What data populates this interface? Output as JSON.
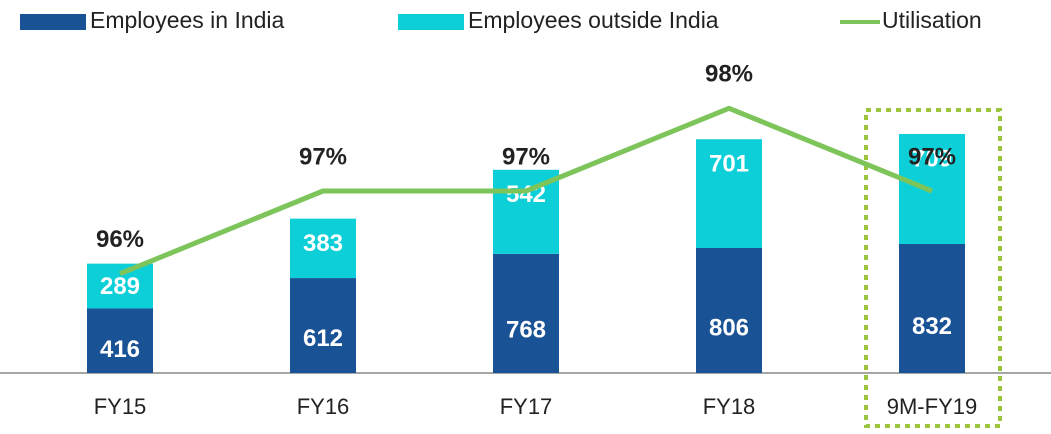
{
  "chart_data": {
    "type": "bar",
    "stacked": true,
    "categories": [
      "FY15",
      "FY16",
      "FY17",
      "FY18",
      "9M-FY19"
    ],
    "series": [
      {
        "name": "Employees in India",
        "color": "#1a5296",
        "values": [
          416,
          612,
          768,
          806,
          832
        ]
      },
      {
        "name": "Employees outside India",
        "color": "#0ccfd8",
        "values": [
          289,
          383,
          542,
          701,
          709
        ]
      },
      {
        "name": "Utilisation",
        "color": "#7dc55a",
        "type": "line",
        "axis": "y2",
        "values": [
          96,
          97,
          97,
          98,
          97
        ],
        "value_labels": [
          "96%",
          "97%",
          "97%",
          "98%",
          "97%"
        ]
      }
    ],
    "ylim": [
      0,
      1760
    ],
    "y2lim": [
      94.8,
      98.1
    ],
    "legend": "top"
  }
}
